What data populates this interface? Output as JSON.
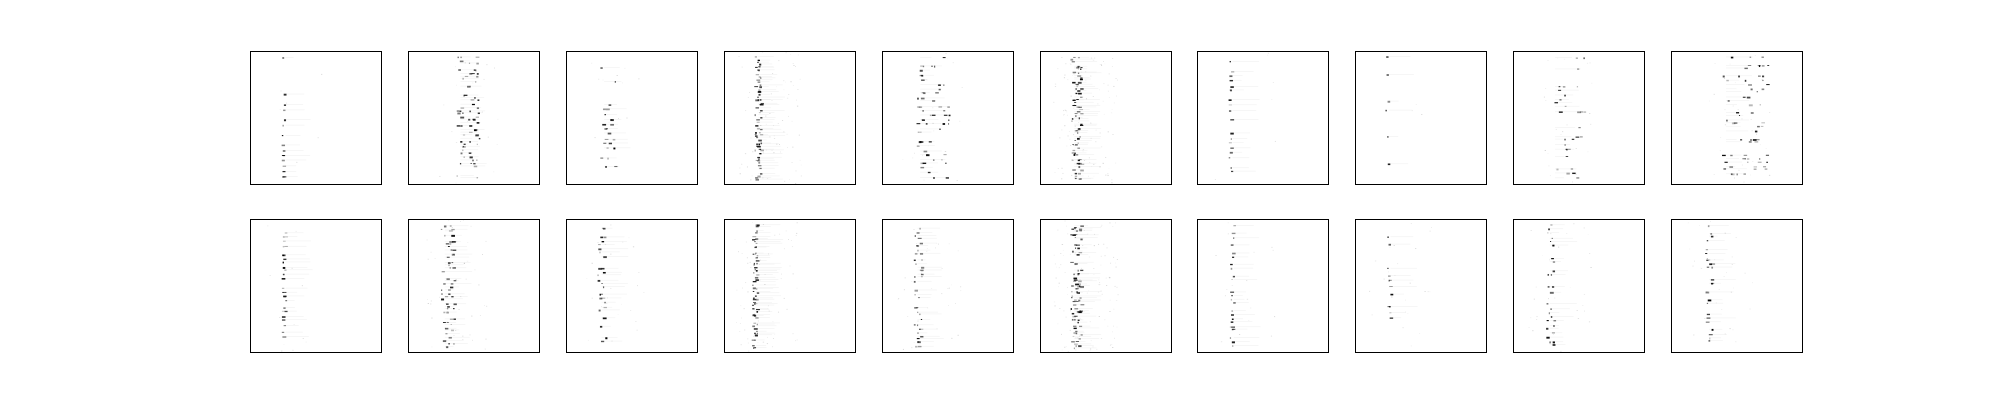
{
  "figure": {
    "rows": 2,
    "cols": 10,
    "background": "#ffffff",
    "frame_color": "#000000",
    "ink_color": "#000000",
    "titles_shown": false,
    "axis_ticks_shown": false
  },
  "panels": [
    {
      "row": 0,
      "col": 0,
      "band": 0.25,
      "spread": 0.02,
      "density": 0.55,
      "rows_n": 24,
      "noise": 0.01,
      "seed": 11
    },
    {
      "row": 0,
      "col": 1,
      "band": 0.38,
      "spread": 0.18,
      "density": 0.9,
      "rows_n": 40,
      "noise": 0.03,
      "seed": 23
    },
    {
      "row": 0,
      "col": 2,
      "band": 0.27,
      "spread": 0.12,
      "density": 0.6,
      "rows_n": 26,
      "noise": 0.02,
      "seed": 37
    },
    {
      "row": 0,
      "col": 3,
      "band": 0.24,
      "spread": 0.05,
      "density": 0.85,
      "rows_n": 60,
      "noise": 0.12,
      "seed": 41
    },
    {
      "row": 0,
      "col": 4,
      "band": 0.27,
      "spread": 0.25,
      "density": 0.75,
      "rows_n": 28,
      "noise": 0.03,
      "seed": 53
    },
    {
      "row": 0,
      "col": 5,
      "band": 0.24,
      "spread": 0.08,
      "density": 0.9,
      "rows_n": 60,
      "noise": 0.18,
      "seed": 67
    },
    {
      "row": 0,
      "col": 6,
      "band": 0.25,
      "spread": 0.02,
      "density": 0.6,
      "rows_n": 26,
      "noise": 0.01,
      "seed": 71
    },
    {
      "row": 0,
      "col": 7,
      "band": 0.24,
      "spread": 0.02,
      "density": 0.35,
      "rows_n": 14,
      "noise": 0.005,
      "seed": 83
    },
    {
      "row": 0,
      "col": 8,
      "band": 0.3,
      "spread": 0.25,
      "density": 0.7,
      "rows_n": 30,
      "noise": 0.04,
      "seed": 97
    },
    {
      "row": 0,
      "col": 9,
      "band": 0.4,
      "spread": 0.35,
      "density": 0.85,
      "rows_n": 32,
      "noise": 0.05,
      "seed": 101
    },
    {
      "row": 1,
      "col": 0,
      "band": 0.25,
      "spread": 0.03,
      "density": 0.7,
      "rows_n": 30,
      "noise": 0.02,
      "seed": 113
    },
    {
      "row": 1,
      "col": 1,
      "band": 0.26,
      "spread": 0.1,
      "density": 0.9,
      "rows_n": 40,
      "noise": 0.08,
      "seed": 127
    },
    {
      "row": 1,
      "col": 2,
      "band": 0.25,
      "spread": 0.06,
      "density": 0.75,
      "rows_n": 32,
      "noise": 0.04,
      "seed": 131
    },
    {
      "row": 1,
      "col": 3,
      "band": 0.22,
      "spread": 0.04,
      "density": 0.85,
      "rows_n": 60,
      "noise": 0.12,
      "seed": 149
    },
    {
      "row": 1,
      "col": 4,
      "band": 0.25,
      "spread": 0.06,
      "density": 0.85,
      "rows_n": 36,
      "noise": 0.06,
      "seed": 157
    },
    {
      "row": 1,
      "col": 5,
      "band": 0.24,
      "spread": 0.08,
      "density": 0.9,
      "rows_n": 60,
      "noise": 0.18,
      "seed": 163
    },
    {
      "row": 1,
      "col": 6,
      "band": 0.26,
      "spread": 0.03,
      "density": 0.75,
      "rows_n": 32,
      "noise": 0.03,
      "seed": 173
    },
    {
      "row": 1,
      "col": 7,
      "band": 0.25,
      "spread": 0.03,
      "density": 0.35,
      "rows_n": 20,
      "noise": 0.04,
      "seed": 181
    },
    {
      "row": 1,
      "col": 8,
      "band": 0.26,
      "spread": 0.06,
      "density": 0.6,
      "rows_n": 30,
      "noise": 0.05,
      "seed": 191
    },
    {
      "row": 1,
      "col": 9,
      "band": 0.27,
      "spread": 0.05,
      "density": 0.7,
      "rows_n": 32,
      "noise": 0.05,
      "seed": 199
    }
  ]
}
